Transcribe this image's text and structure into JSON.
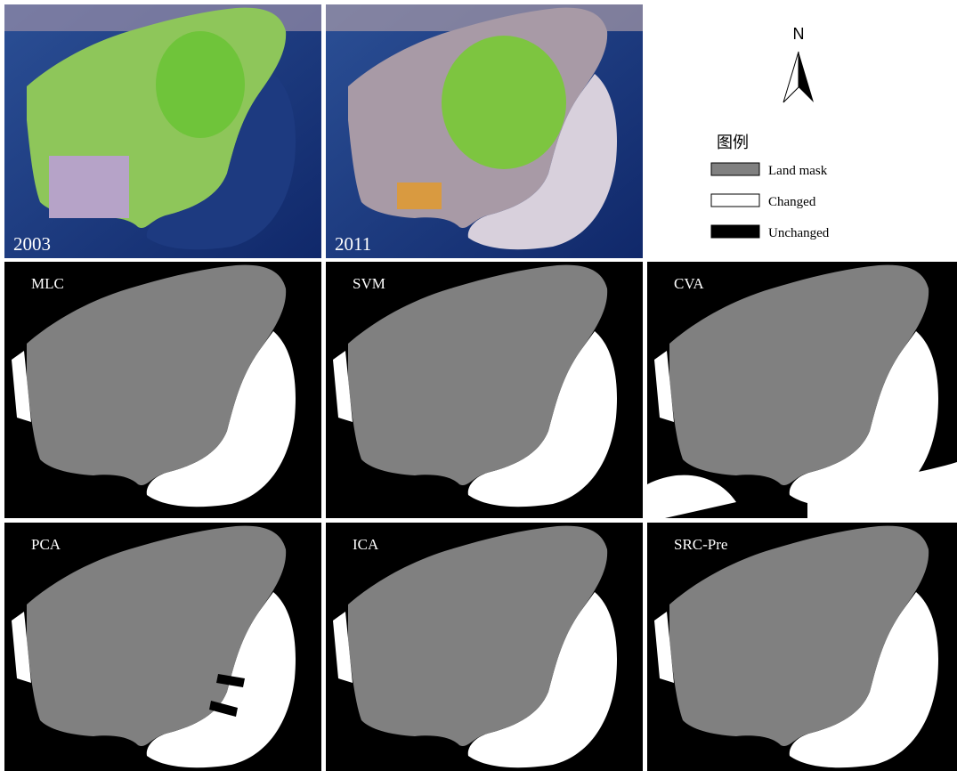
{
  "top_panels": [
    {
      "label": "2003"
    },
    {
      "label": "2011"
    }
  ],
  "legend": {
    "north": "N",
    "title": "图例",
    "items": [
      "Land mask",
      "Changed",
      "Unchanged"
    ]
  },
  "panels": [
    "MLC",
    "SVM",
    "CVA",
    "PCA",
    "ICA",
    "SRC-Pre"
  ]
}
